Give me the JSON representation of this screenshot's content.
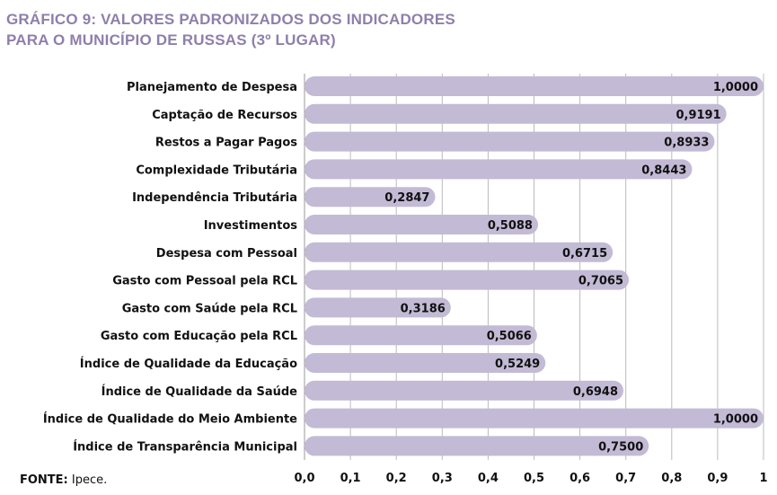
{
  "chart_data": {
    "type": "bar",
    "orientation": "horizontal",
    "title_lines": [
      "GRÁFICO 9: VALORES PADRONIZADOS DOS INDICADORES",
      "PARA O MUNICÍPIO DE RUSSAS (3º LUGAR)"
    ],
    "categories": [
      "Planejamento de Despesa",
      "Captação de Recursos",
      "Restos a Pagar Pagos",
      "Complexidade Tributária",
      "Independência Tributária",
      "Investimentos",
      "Despesa com Pessoal",
      "Gasto com Pessoal pela RCL",
      "Gasto com Saúde pela RCL",
      "Gasto com Educação pela RCL",
      "Índice de Qualidade da Educação",
      "Índice de Qualidade da Saúde",
      "Índice de Qualidade do Meio Ambiente",
      "Índice de Transparência Municipal"
    ],
    "values": [
      1.0,
      0.9191,
      0.8933,
      0.8443,
      0.2847,
      0.5088,
      0.6715,
      0.7065,
      0.3186,
      0.5066,
      0.5249,
      0.6948,
      1.0,
      0.75
    ],
    "value_labels": [
      "1,0000",
      "0,9191",
      "0,8933",
      "0,8443",
      "0,2847",
      "0,5088",
      "0,6715",
      "0,7065",
      "0,3186",
      "0,5066",
      "0,5249",
      "0,6948",
      "1,0000",
      "0,7500"
    ],
    "xlim": [
      0,
      1
    ],
    "x_ticks": [
      "0,0",
      "0,1",
      "0,2",
      "0,3",
      "0,4",
      "0,5",
      "0,6",
      "0,7",
      "0,8",
      "0,9",
      "1"
    ],
    "grid": true,
    "bar_color": "#c3bad5",
    "title_color": "#8e7fab"
  },
  "source": {
    "label": "FONTE:",
    "text": " Ipece."
  }
}
